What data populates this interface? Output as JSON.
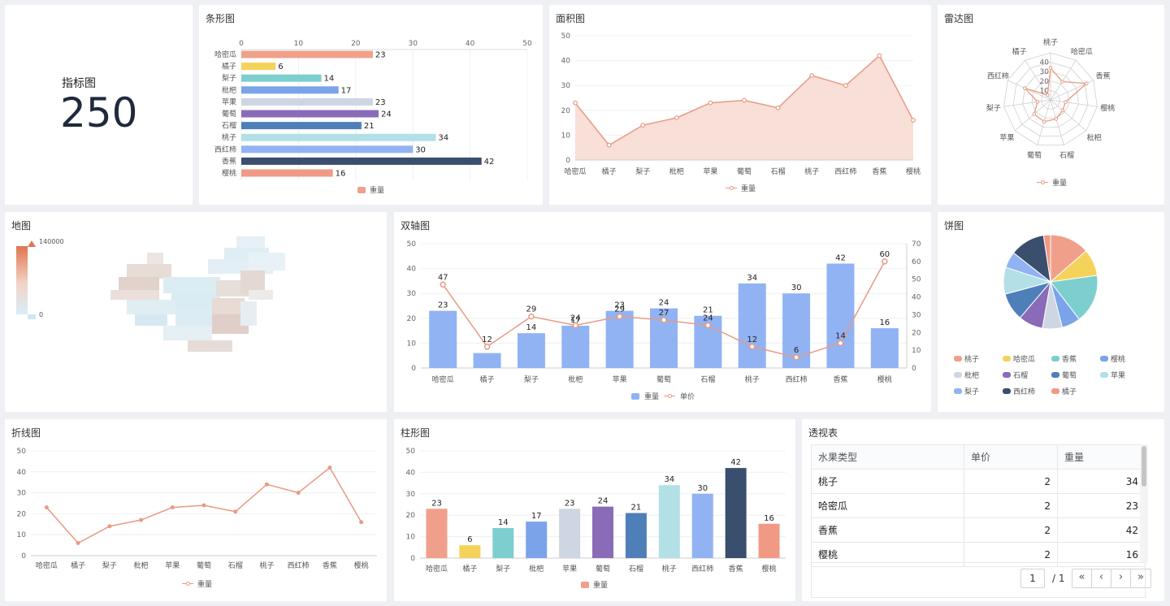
{
  "fruits": [
    "哈密瓜",
    "橘子",
    "梨子",
    "枇杷",
    "苹果",
    "葡萄",
    "石榴",
    "桃子",
    "西红柿",
    "香蕉",
    "樱桃"
  ],
  "weights": [
    23,
    6,
    14,
    17,
    23,
    24,
    21,
    34,
    30,
    42,
    16
  ],
  "prices": [
    47,
    12,
    29,
    24,
    29,
    27,
    24,
    12,
    6,
    14,
    60
  ],
  "colors": [
    "#f0a08a",
    "#f5d35a",
    "#7ccfce",
    "#7aa3ea",
    "#cdd6e2",
    "#8a6bb8",
    "#4f7fb8",
    "#b2e0e6",
    "#91b3f3",
    "#3a4f6e",
    "#f09a86"
  ],
  "kpi": {
    "title": "指标图",
    "label": "指标图",
    "value": "250"
  },
  "hbar": {
    "title": "条形图",
    "legend": "重量",
    "axis": [
      0,
      10,
      20,
      30,
      40,
      50
    ]
  },
  "area": {
    "title": "面积图",
    "legend": "重量",
    "axis": [
      0,
      10,
      20,
      30,
      40,
      50
    ]
  },
  "radar": {
    "title": "雷达图",
    "legend": "重量",
    "axes": [
      "桃子",
      "哈密瓜",
      "香蕉",
      "樱桃",
      "枇杷",
      "石榴",
      "葡萄",
      "苹果",
      "梨子",
      "西红柿",
      "橘子"
    ],
    "values": [
      34,
      23,
      42,
      16,
      17,
      21,
      24,
      23,
      14,
      30,
      6
    ],
    "ticks": [
      "10",
      "20",
      "30",
      "40"
    ]
  },
  "map": {
    "title": "地图",
    "max": "140000",
    "min": "0"
  },
  "dual": {
    "title": "双轴图",
    "legend_bar": "重量",
    "legend_line": "单价",
    "left_axis": [
      0,
      10,
      20,
      30,
      40,
      50
    ],
    "right_axis": [
      0,
      10,
      20,
      30,
      40,
      50,
      60,
      70
    ]
  },
  "pie": {
    "title": "饼图",
    "order": [
      "桃子",
      "哈密瓜",
      "香蕉",
      "樱桃",
      "枇杷",
      "石榴",
      "葡萄",
      "苹果",
      "梨子",
      "西红柿",
      "橘子"
    ],
    "values": [
      34,
      23,
      42,
      16,
      17,
      21,
      24,
      23,
      14,
      30,
      6
    ],
    "colors": [
      "#f0a08a",
      "#f5d35a",
      "#7ccfce",
      "#7aa3ea",
      "#cdd6e2",
      "#8a6bb8",
      "#4f7fb8",
      "#b2e0e6",
      "#91b3f3",
      "#3a4f6e",
      "#f09a86"
    ]
  },
  "line": {
    "title": "折线图",
    "legend": "重量",
    "axis": [
      0,
      10,
      20,
      30,
      40,
      50
    ]
  },
  "column": {
    "title": "柱形图",
    "legend": "重量",
    "axis": [
      0,
      10,
      20,
      30,
      40,
      50
    ]
  },
  "pivot": {
    "title": "透视表",
    "headers": [
      "水果类型",
      "单价",
      "重量"
    ],
    "rows": [
      [
        "桃子",
        "2",
        "34"
      ],
      [
        "哈密瓜",
        "2",
        "23"
      ],
      [
        "香蕉",
        "2",
        "42"
      ],
      [
        "樱桃",
        "2",
        "16"
      ]
    ],
    "page": "1",
    "total": "/ 1",
    "btn_first": "«",
    "btn_prev": "‹",
    "btn_next": "›",
    "btn_last": "»"
  },
  "chart_data": [
    {
      "type": "bar",
      "title": "条形图",
      "categories": [
        "哈密瓜",
        "橘子",
        "梨子",
        "枇杷",
        "苹果",
        "葡萄",
        "石榴",
        "桃子",
        "西红柿",
        "香蕉",
        "樱桃"
      ],
      "series": [
        {
          "name": "重量",
          "values": [
            23,
            6,
            14,
            17,
            23,
            24,
            21,
            34,
            30,
            42,
            16
          ]
        }
      ],
      "xlim": [
        0,
        50
      ]
    },
    {
      "type": "area",
      "title": "面积图",
      "categories": [
        "哈密瓜",
        "橘子",
        "梨子",
        "枇杷",
        "苹果",
        "葡萄",
        "石榴",
        "桃子",
        "西红柿",
        "香蕉",
        "樱桃"
      ],
      "series": [
        {
          "name": "重量",
          "values": [
            23,
            6,
            14,
            17,
            23,
            24,
            21,
            34,
            30,
            42,
            16
          ]
        }
      ],
      "ylim": [
        0,
        50
      ]
    },
    {
      "type": "line",
      "title": "雷达图",
      "categories": [
        "桃子",
        "哈密瓜",
        "香蕉",
        "樱桃",
        "枇杷",
        "石榴",
        "葡萄",
        "苹果",
        "梨子",
        "西红柿",
        "橘子"
      ],
      "series": [
        {
          "name": "重量",
          "values": [
            34,
            23,
            42,
            16,
            17,
            21,
            24,
            23,
            14,
            30,
            6
          ]
        }
      ]
    },
    {
      "type": "bar",
      "title": "双轴图",
      "categories": [
        "哈密瓜",
        "橘子",
        "梨子",
        "枇杷",
        "苹果",
        "葡萄",
        "石榴",
        "桃子",
        "西红柿",
        "香蕉",
        "樱桃"
      ],
      "series": [
        {
          "name": "重量",
          "values": [
            23,
            6,
            14,
            17,
            23,
            24,
            21,
            34,
            30,
            42,
            16
          ]
        },
        {
          "name": "单价",
          "values": [
            47,
            12,
            29,
            24,
            29,
            27,
            24,
            12,
            6,
            14,
            60
          ]
        }
      ],
      "ylim": [
        0,
        50
      ],
      "y2lim": [
        0,
        70
      ]
    },
    {
      "type": "pie",
      "title": "饼图",
      "categories": [
        "桃子",
        "哈密瓜",
        "香蕉",
        "樱桃",
        "枇杷",
        "石榴",
        "葡萄",
        "苹果",
        "梨子",
        "西红柿",
        "橘子"
      ],
      "values": [
        34,
        23,
        42,
        16,
        17,
        21,
        24,
        23,
        14,
        30,
        6
      ]
    },
    {
      "type": "line",
      "title": "折线图",
      "categories": [
        "哈密瓜",
        "橘子",
        "梨子",
        "枇杷",
        "苹果",
        "葡萄",
        "石榴",
        "桃子",
        "西红柿",
        "香蕉",
        "樱桃"
      ],
      "series": [
        {
          "name": "重量",
          "values": [
            23,
            6,
            14,
            17,
            23,
            24,
            21,
            34,
            30,
            42,
            16
          ]
        }
      ],
      "ylim": [
        0,
        50
      ]
    },
    {
      "type": "bar",
      "title": "柱形图",
      "categories": [
        "哈密瓜",
        "橘子",
        "梨子",
        "枇杷",
        "苹果",
        "葡萄",
        "石榴",
        "桃子",
        "西红柿",
        "香蕉",
        "樱桃"
      ],
      "series": [
        {
          "name": "重量",
          "values": [
            23,
            6,
            14,
            17,
            23,
            24,
            21,
            34,
            30,
            42,
            16
          ]
        }
      ],
      "ylim": [
        0,
        50
      ]
    }
  ]
}
